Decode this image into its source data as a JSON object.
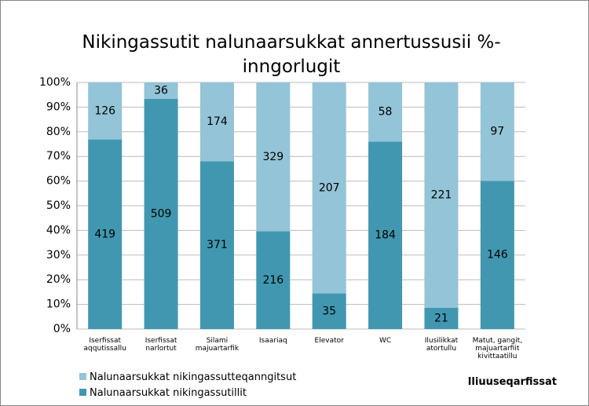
{
  "chart_data": {
    "type": "bar",
    "stacking": "percent",
    "title": "Nikingassutit nalunaarsukkat annertussusii %-inngorlugit",
    "xlabel": "Iliuuseqarfissat",
    "categories": [
      "Iserfissat aqqutissallu",
      "Iserfissat narlortut",
      "Silami majuartarfik",
      "Isaariaq",
      "Elevator",
      "WC",
      "Ilusilikkat atortullu",
      "Matut, gangit, majuartarfiit kivittaatillu"
    ],
    "series": [
      {
        "name": "Nalunaarsukkat nikingassutillit",
        "color": "#4197b0",
        "values": [
          419,
          509,
          371,
          216,
          35,
          184,
          21,
          146
        ]
      },
      {
        "name": "Nalunaarsukkat nikingassutteqanngitsut",
        "color": "#93c4d7",
        "values": [
          126,
          36,
          174,
          329,
          207,
          58,
          221,
          97
        ]
      }
    ],
    "ylim": [
      0,
      100
    ],
    "yticks": [
      {
        "value": 0,
        "label": "0%"
      },
      {
        "value": 10,
        "label": "10%"
      },
      {
        "value": 20,
        "label": "20%"
      },
      {
        "value": 30,
        "label": "30%"
      },
      {
        "value": 40,
        "label": "40%"
      },
      {
        "value": 50,
        "label": "50%"
      },
      {
        "value": 60,
        "label": "60%"
      },
      {
        "value": 70,
        "label": "70%"
      },
      {
        "value": 80,
        "label": "80%"
      },
      {
        "value": 90,
        "label": "90%"
      },
      {
        "value": 100,
        "label": "100%"
      }
    ],
    "grid": true,
    "legend": "bottom-left"
  }
}
